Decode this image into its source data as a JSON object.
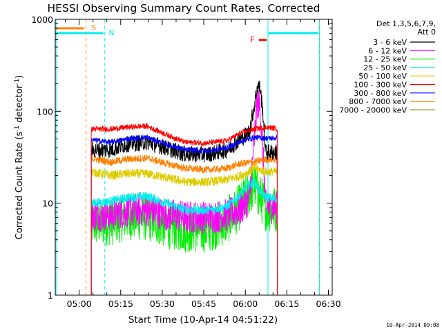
{
  "chart_data": {
    "type": "line",
    "title": "HESSI Observing Summary Count Rates, Corrected",
    "xlabel": "Start Time (10-Apr-14 04:51:22)",
    "ylabel_main": "Corrected Count Rate (s",
    "ylabel_sup": "-1",
    "ylabel_tail": " detector",
    "ylabel_end": ")",
    "yscale": "log",
    "ylim": [
      1,
      1000
    ],
    "y_ticks": [
      {
        "value": 1,
        "label": "1"
      },
      {
        "value": 10,
        "label": "10"
      },
      {
        "value": 100,
        "label": "100"
      },
      {
        "value": 1000,
        "label": "1000"
      }
    ],
    "xlim_minutes": [
      0,
      100
    ],
    "x_ticks": [
      {
        "minute": 8.6333,
        "label": "05:00"
      },
      {
        "minute": 23.6333,
        "label": "05:15"
      },
      {
        "minute": 38.6333,
        "label": "05:30"
      },
      {
        "minute": 53.6333,
        "label": "05:45"
      },
      {
        "minute": 68.6333,
        "label": "06:00"
      },
      {
        "minute": 83.6333,
        "label": "06:15"
      },
      {
        "minute": 98.6333,
        "label": "06:30"
      }
    ],
    "legend": {
      "header1": "Det 1,3,5,6,7,9,",
      "header2": "Att 0",
      "position": "right"
    },
    "series": [
      {
        "name": "3 - 6 keV",
        "color": "#000000",
        "noise": 0.09,
        "points": [
          [
            13.0,
            38
          ],
          [
            20,
            38
          ],
          [
            26,
            44
          ],
          [
            33,
            46
          ],
          [
            40,
            40
          ],
          [
            47,
            34
          ],
          [
            55,
            34
          ],
          [
            62,
            38
          ],
          [
            67,
            50
          ],
          [
            70,
            60
          ],
          [
            72,
            120
          ],
          [
            73,
            190
          ],
          [
            74,
            180
          ],
          [
            75,
            95
          ],
          [
            76,
            36
          ],
          [
            80,
            36
          ]
        ]
      },
      {
        "name": "6 - 12 keV",
        "color": "#ff00ff",
        "noise": 0.18,
        "points": [
          [
            13.0,
            7.5
          ],
          [
            20,
            7.5
          ],
          [
            26,
            8.2
          ],
          [
            33,
            8.4
          ],
          [
            40,
            7.6
          ],
          [
            47,
            7.1
          ],
          [
            55,
            7.0
          ],
          [
            62,
            7.4
          ],
          [
            67,
            8.6
          ],
          [
            70,
            11
          ],
          [
            72,
            55
          ],
          [
            73,
            130
          ],
          [
            74,
            110
          ],
          [
            75,
            35
          ],
          [
            76,
            9.2
          ],
          [
            80,
            9
          ]
        ]
      },
      {
        "name": "12 - 25 keV",
        "color": "#00ee00",
        "noise": 0.26,
        "points": [
          [
            13.0,
            6.0
          ],
          [
            20,
            6.2
          ],
          [
            26,
            7.2
          ],
          [
            33,
            7.0
          ],
          [
            40,
            5.8
          ],
          [
            47,
            5.2
          ],
          [
            55,
            5.2
          ],
          [
            62,
            6.4
          ],
          [
            67,
            9.4
          ],
          [
            70,
            13
          ],
          [
            72,
            16
          ],
          [
            73,
            13
          ],
          [
            76,
            9.0
          ],
          [
            80,
            8.5
          ]
        ]
      },
      {
        "name": "25 - 50 keV",
        "color": "#00eeee",
        "noise": 0.05,
        "points": [
          [
            13.0,
            10
          ],
          [
            20,
            10.5
          ],
          [
            26,
            11.5
          ],
          [
            33,
            12
          ],
          [
            40,
            10
          ],
          [
            47,
            8.5
          ],
          [
            55,
            8.4
          ],
          [
            62,
            9.2
          ],
          [
            67,
            12.5
          ],
          [
            70,
            16
          ],
          [
            72,
            17
          ],
          [
            75,
            12
          ],
          [
            80,
            11
          ]
        ]
      },
      {
        "name": "50 - 100 keV",
        "color": "#ddcc00",
        "noise": 0.05,
        "points": [
          [
            13.0,
            22
          ],
          [
            20,
            20
          ],
          [
            26,
            21
          ],
          [
            33,
            21
          ],
          [
            40,
            19
          ],
          [
            47,
            17
          ],
          [
            55,
            17
          ],
          [
            62,
            18
          ],
          [
            67,
            20
          ],
          [
            70,
            22
          ],
          [
            72,
            24
          ],
          [
            76,
            22
          ],
          [
            80,
            22
          ]
        ]
      },
      {
        "name": "100 - 300 keV",
        "color": "#ff0000",
        "noise": 0.03,
        "points": [
          [
            13.0,
            64
          ],
          [
            20,
            64
          ],
          [
            26,
            67
          ],
          [
            33,
            69
          ],
          [
            40,
            56
          ],
          [
            47,
            46
          ],
          [
            55,
            45
          ],
          [
            62,
            48
          ],
          [
            67,
            58
          ],
          [
            72,
            64
          ],
          [
            76,
            67
          ],
          [
            80,
            65
          ]
        ]
      },
      {
        "name": "300 - 800 keV",
        "color": "#0000ff",
        "noise": 0.03,
        "points": [
          [
            13.0,
            49
          ],
          [
            20,
            46
          ],
          [
            26,
            50
          ],
          [
            33,
            52
          ],
          [
            40,
            44
          ],
          [
            47,
            38
          ],
          [
            55,
            37
          ],
          [
            62,
            40
          ],
          [
            67,
            47
          ],
          [
            72,
            52
          ],
          [
            76,
            51
          ],
          [
            80,
            51
          ]
        ]
      },
      {
        "name": "800 - 7000 keV",
        "color": "#ff8000",
        "noise": 0.04,
        "points": [
          [
            13.0,
            31
          ],
          [
            20,
            28
          ],
          [
            26,
            30
          ],
          [
            33,
            31
          ],
          [
            40,
            27
          ],
          [
            47,
            24
          ],
          [
            55,
            23
          ],
          [
            62,
            24
          ],
          [
            67,
            27
          ],
          [
            72,
            28
          ],
          [
            76,
            30
          ],
          [
            80,
            30
          ]
        ]
      },
      {
        "name": "7000 - 20000 keV",
        "color": "#808000",
        "noise": 0.0,
        "points": []
      }
    ],
    "markers": {
      "S_label": "S",
      "N_label": "N",
      "F_label": "F",
      "S_color": "#ff8000",
      "N_color": "#00eeee",
      "F_color": "#ff0000"
    }
  },
  "timestamp": "10-Apr-2014 09:08"
}
